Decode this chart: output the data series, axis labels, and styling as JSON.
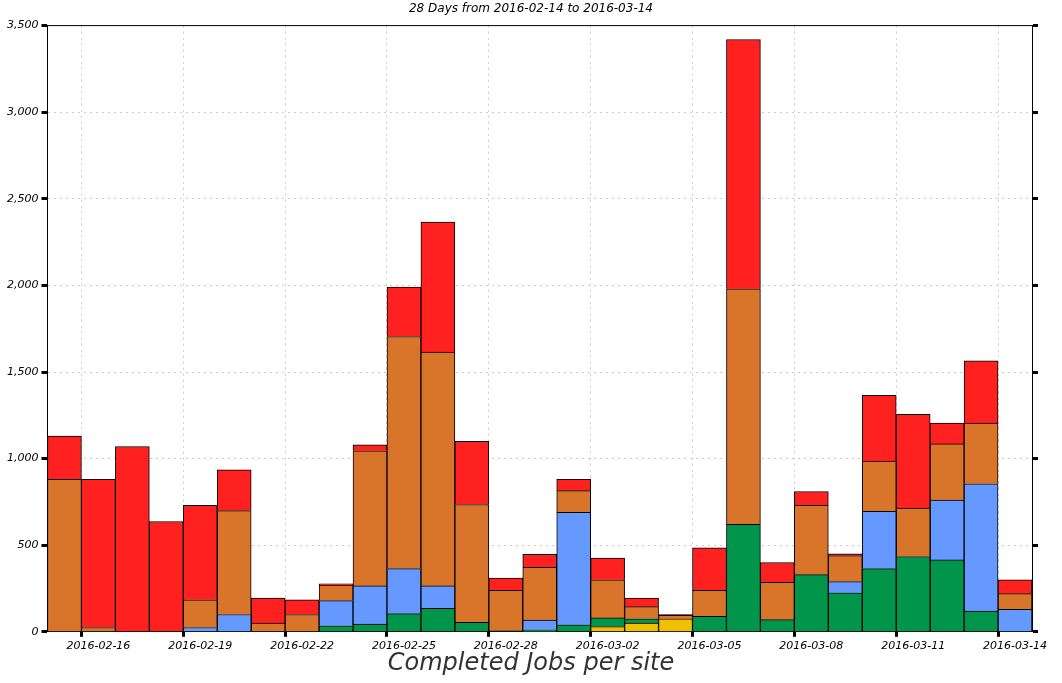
{
  "chart_data": {
    "type": "bar",
    "stacked": true,
    "title": "28 Days from 2016-02-14 to 2016-03-14",
    "xlabel": "Completed Jobs per site",
    "categories": [
      null,
      "2016-02-16",
      null,
      null,
      "2016-02-19",
      null,
      null,
      "2016-02-22",
      null,
      null,
      "2016-02-25",
      null,
      null,
      "2016-02-28",
      null,
      null,
      "2016-03-02",
      null,
      null,
      "2016-03-05",
      null,
      null,
      "2016-03-08",
      null,
      null,
      "2016-03-11",
      null,
      null,
      "2016-03-14"
    ],
    "series": [
      {
        "color": "#f0c000",
        "values": [
          0,
          0,
          0,
          0,
          0,
          0,
          0,
          0,
          0,
          0,
          0,
          0,
          0,
          0,
          0,
          0,
          30,
          50,
          75,
          0,
          0,
          0,
          0,
          0,
          0,
          0,
          0,
          0,
          0
        ]
      },
      {
        "color": "#00954a",
        "values": [
          0,
          0,
          0,
          0,
          0,
          0,
          0,
          0,
          35,
          45,
          105,
          135,
          55,
          5,
          12,
          40,
          50,
          25,
          0,
          90,
          620,
          70,
          330,
          225,
          365,
          435,
          415,
          120,
          0
        ]
      },
      {
        "color": "#6699ff",
        "values": [
          0,
          0,
          0,
          0,
          25,
          100,
          0,
          0,
          145,
          220,
          260,
          130,
          0,
          0,
          55,
          650,
          0,
          0,
          0,
          0,
          0,
          0,
          0,
          65,
          330,
          0,
          345,
          735,
          130
        ]
      },
      {
        "color": "#d9752b",
        "values": [
          880,
          25,
          null,
          null,
          160,
          600,
          50,
          100,
          90,
          780,
          1340,
          1350,
          680,
          235,
          305,
          125,
          220,
          70,
          20,
          150,
          1360,
          215,
          400,
          150,
          290,
          280,
          325,
          350,
          90
        ]
      },
      {
        "color": "#ff2020",
        "values": [
          250,
          855,
          1070,
          637,
          545,
          235,
          145,
          85,
          7,
          35,
          285,
          750,
          365,
          70,
          75,
          65,
          125,
          50,
          5,
          245,
          1440,
          115,
          80,
          10,
          380,
          540,
          120,
          360,
          80
        ]
      }
    ],
    "ylim": [
      0,
      3500
    ],
    "yticks": [
      0,
      {
        "value": 500,
        "label": "500"
      },
      {
        "value": 1000,
        "label": "1,000"
      },
      {
        "value": 1500,
        "label": "1,500"
      },
      {
        "value": 2000,
        "label": "2,000"
      },
      {
        "value": 2500,
        "label": "2,500"
      },
      {
        "value": 3000,
        "label": "3,000"
      },
      {
        "value": 3500,
        "label": "3,500"
      }
    ],
    "grid": true,
    "legend": false
  }
}
